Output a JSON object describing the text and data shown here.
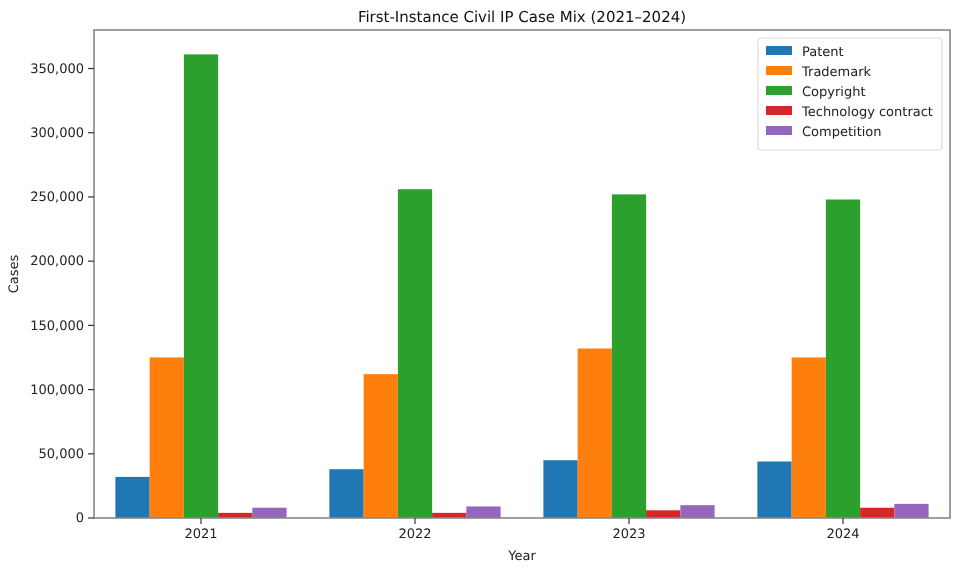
{
  "chart_data": {
    "type": "bar",
    "title": "First-Instance Civil IP Case Mix (2021–2024)",
    "xlabel": "Year",
    "ylabel": "Cases",
    "categories": [
      "2021",
      "2022",
      "2023",
      "2024"
    ],
    "series": [
      {
        "name": "Patent",
        "color": "#1f77b4",
        "values": [
          32000,
          38000,
          45000,
          44000
        ]
      },
      {
        "name": "Trademark",
        "color": "#ff7f0e",
        "values": [
          125000,
          112000,
          132000,
          125000
        ]
      },
      {
        "name": "Copyright",
        "color": "#2ca02c",
        "values": [
          361000,
          256000,
          252000,
          248000
        ]
      },
      {
        "name": "Technology contract",
        "color": "#d62728",
        "values": [
          4000,
          4000,
          6000,
          8000
        ]
      },
      {
        "name": "Competition",
        "color": "#9467bd",
        "values": [
          8000,
          9000,
          10000,
          11000
        ]
      }
    ],
    "ylim": [
      0,
      380000
    ],
    "yticks": [
      {
        "value": 0,
        "label": "0"
      },
      {
        "value": 50000,
        "label": "50,000"
      },
      {
        "value": 100000,
        "label": "100,000"
      },
      {
        "value": 150000,
        "label": "150,000"
      },
      {
        "value": 200000,
        "label": "200,000"
      },
      {
        "value": 250000,
        "label": "250,000"
      },
      {
        "value": 300000,
        "label": "300,000"
      },
      {
        "value": 350000,
        "label": "350,000"
      }
    ],
    "legend": "top right",
    "grid": false
  }
}
